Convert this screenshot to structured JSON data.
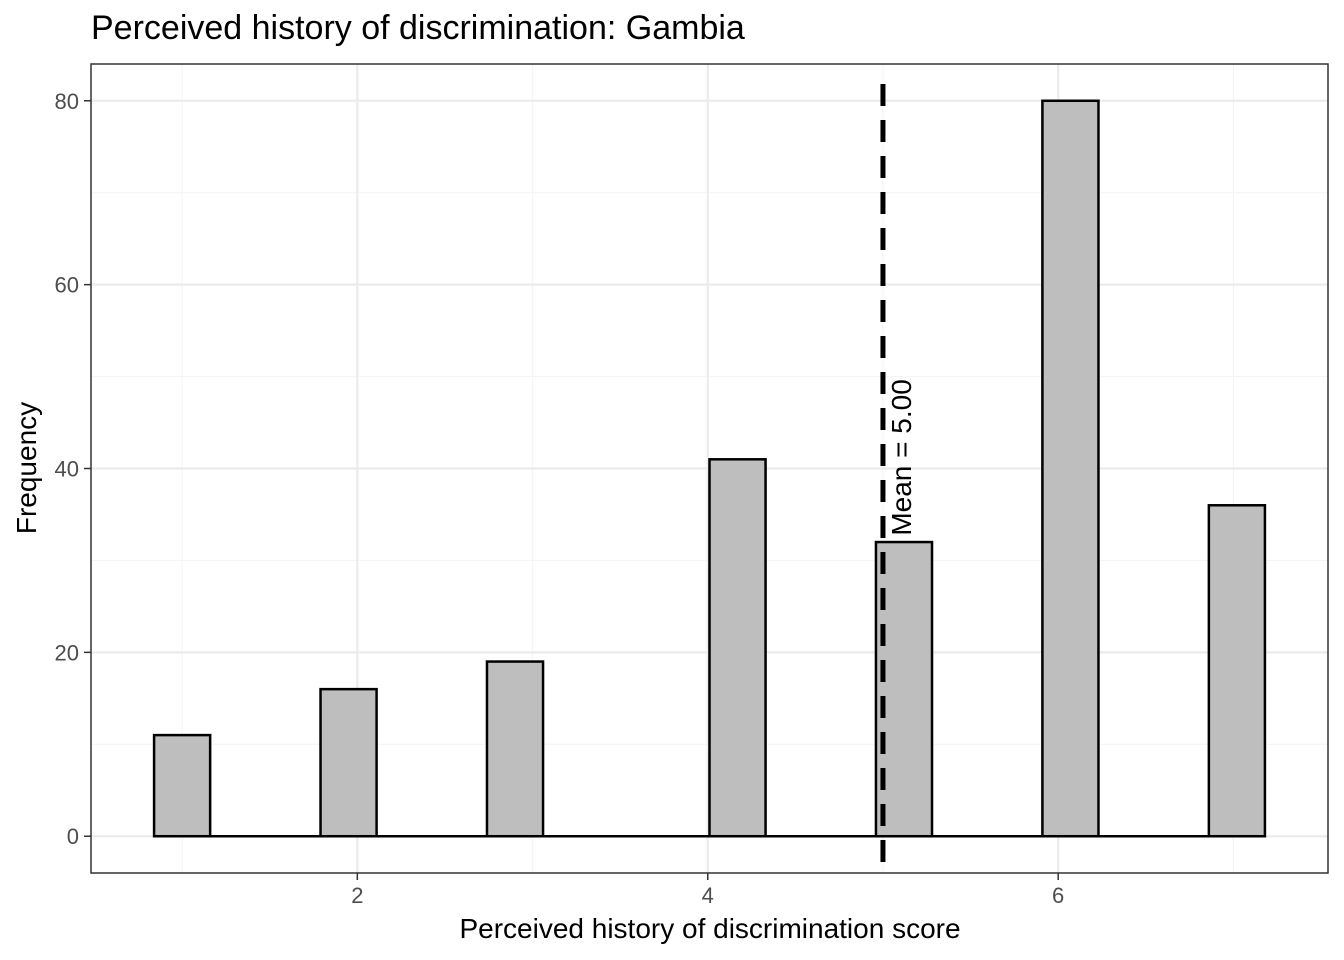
{
  "chart_data": {
    "type": "bar",
    "title": "Perceived history of discrimination: Gambia",
    "xlabel": "Perceived history of discrimination score",
    "ylabel": "Frequency",
    "x": [
      1.0,
      1.95,
      2.9,
      4.17,
      5.12,
      6.07,
      7.02
    ],
    "values": [
      11,
      16,
      19,
      41,
      32,
      80,
      36
    ],
    "bar_width": 0.32,
    "xlim": [
      0.48,
      7.54
    ],
    "ylim": [
      -4,
      84
    ],
    "x_ticks": [
      2,
      4,
      6
    ],
    "y_ticks": [
      0,
      20,
      40,
      60,
      80
    ],
    "x_tick_labels": [
      "2",
      "4",
      "6"
    ],
    "y_tick_labels": [
      "0",
      "20",
      "40",
      "60",
      "80"
    ],
    "mean_line": {
      "x": 5.0,
      "style": "dashed"
    },
    "annotation": "Mean = 5.00",
    "grid": true,
    "theme": "bw",
    "colors": {
      "bar_fill": "#bebebe",
      "bar_stroke": "#000000",
      "grid_major": "#ebebeb",
      "grid_minor": "#f5f5f5",
      "panel_border": "#333333",
      "mean_line": "#000000"
    }
  }
}
